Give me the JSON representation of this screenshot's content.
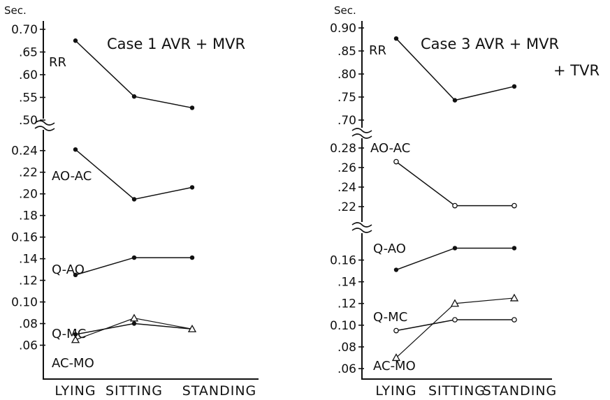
{
  "chart_data": [
    {
      "type": "line",
      "title": "Case 1  AVR + MVR",
      "ylabel": "Sec.",
      "categories": [
        "LYING",
        "SITTING",
        "STANDING"
      ],
      "y_segments": [
        {
          "ylim": [
            0.5,
            0.7
          ],
          "ticks": [
            {
              "v": 0.7,
              "label": "0.70"
            },
            {
              "v": 0.65,
              "label": ".65"
            },
            {
              "v": 0.6,
              "label": ".60"
            },
            {
              "v": 0.55,
              "label": ".55"
            },
            {
              "v": 0.5,
              "label": ".50"
            }
          ]
        },
        {
          "ylim": [
            0.05,
            0.245
          ],
          "ticks": [
            {
              "v": 0.24,
              "label": "0.24"
            },
            {
              "v": 0.22,
              "label": ".22"
            },
            {
              "v": 0.2,
              "label": ".20"
            },
            {
              "v": 0.18,
              "label": ".18"
            },
            {
              "v": 0.16,
              "label": "0.16"
            },
            {
              "v": 0.14,
              "label": ".14"
            },
            {
              "v": 0.12,
              "label": ".12"
            },
            {
              "v": 0.1,
              "label": "0.10"
            },
            {
              "v": 0.08,
              "label": ".08"
            },
            {
              "v": 0.06,
              "label": ".06"
            }
          ]
        }
      ],
      "series": [
        {
          "name": "RR",
          "marker": "dot",
          "values": [
            0.675,
            0.552,
            0.527
          ]
        },
        {
          "name": "AO-AC",
          "marker": "dot",
          "values": [
            0.241,
            0.195,
            0.206
          ]
        },
        {
          "name": "Q-AO",
          "marker": "dot",
          "values": [
            0.125,
            0.141,
            0.141
          ]
        },
        {
          "name": "Q-MC",
          "marker": "dot",
          "values": [
            0.07,
            0.08,
            0.075
          ]
        },
        {
          "name": "AC-MO",
          "marker": "triangle",
          "values": [
            0.065,
            0.085,
            0.075
          ]
        }
      ]
    },
    {
      "type": "line",
      "title": "Case 3  AVR + MVR + TVR",
      "ylabel": "Sec.",
      "categories": [
        "LYING",
        "SITTING",
        "STANDING"
      ],
      "y_segments": [
        {
          "ylim": [
            0.7,
            0.9
          ],
          "ticks": [
            {
              "v": 0.9,
              "label": "0.90"
            },
            {
              "v": 0.85,
              "label": ".85"
            },
            {
              "v": 0.8,
              "label": ".80"
            },
            {
              "v": 0.75,
              "label": ".75"
            },
            {
              "v": 0.7,
              "label": ".70"
            }
          ]
        },
        {
          "ylim": [
            0.21,
            0.28
          ],
          "ticks": [
            {
              "v": 0.28,
              "label": "0.28"
            },
            {
              "v": 0.26,
              "label": ".26"
            },
            {
              "v": 0.24,
              "label": ".24"
            },
            {
              "v": 0.22,
              "label": ".22"
            }
          ]
        },
        {
          "ylim": [
            0.06,
            0.17
          ],
          "ticks": [
            {
              "v": 0.16,
              "label": "0.16"
            },
            {
              "v": 0.14,
              "label": ".14"
            },
            {
              "v": 0.12,
              "label": ".12"
            },
            {
              "v": 0.1,
              "label": "0.10"
            },
            {
              "v": 0.08,
              "label": ".08"
            },
            {
              "v": 0.06,
              "label": ".06"
            }
          ]
        }
      ],
      "series": [
        {
          "name": "RR",
          "marker": "dot",
          "values": [
            0.877,
            0.743,
            0.773
          ]
        },
        {
          "name": "AO-AC",
          "marker": "circle",
          "values": [
            0.266,
            0.221,
            0.221
          ]
        },
        {
          "name": "Q-AO",
          "marker": "dot",
          "values": [
            0.151,
            0.171,
            0.171
          ]
        },
        {
          "name": "Q-MC",
          "marker": "circle",
          "values": [
            0.095,
            0.105,
            0.105
          ]
        },
        {
          "name": "AC-MO",
          "marker": "triangle",
          "values": [
            0.07,
            0.12,
            0.125
          ]
        }
      ]
    }
  ]
}
